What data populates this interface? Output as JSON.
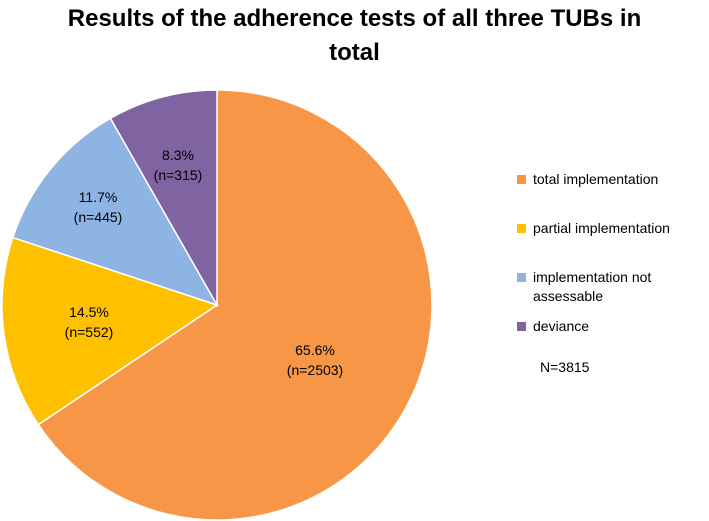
{
  "chart_data": {
    "type": "pie",
    "title_lines": [
      "Results of the adherence tests of all three TUBs in",
      "total"
    ],
    "slices": [
      {
        "name": "total implementation",
        "percent_label": "65.6%",
        "count_label": "(n=2503)",
        "value": 2503,
        "color": "#F79646"
      },
      {
        "name": "partial implementation",
        "percent_label": "14.5%",
        "count_label": "(n=552)",
        "value": 552,
        "color": "#FFC000"
      },
      {
        "name": "implementation not assessable",
        "name_lines": [
          "implementation not",
          "assessable"
        ],
        "percent_label": "11.7%",
        "count_label": "(n=445)",
        "value": 445,
        "color": "#8EB4E3"
      },
      {
        "name": "deviance",
        "percent_label": "8.3%",
        "count_label": "(n=315)",
        "value": 315,
        "color": "#8064A2"
      }
    ],
    "start_angle": "12 o'clock",
    "direction": "clockwise",
    "legend_position": "right",
    "annotation": "N=3815"
  }
}
